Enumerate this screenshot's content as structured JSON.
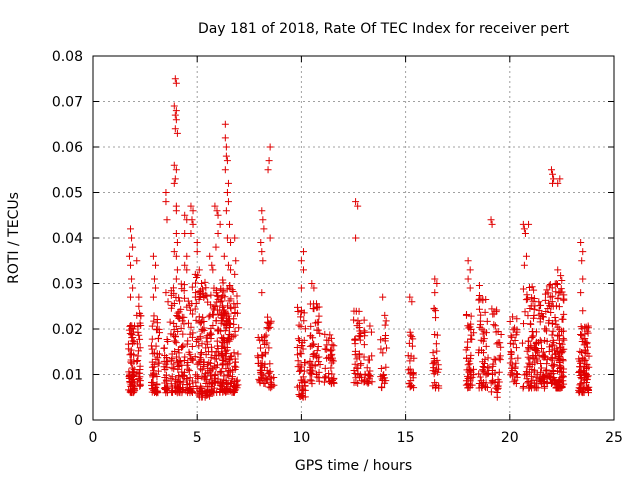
{
  "chart_data": {
    "type": "scatter",
    "title": "Day 181 of 2018, Rate Of TEC Index for receiver pert",
    "xlabel": "GPS time / hours",
    "ylabel": "ROTI / TECUs",
    "xlim": [
      0,
      25
    ],
    "ylim": [
      0,
      0.08
    ],
    "xticks": [
      0,
      5,
      10,
      15,
      20,
      25
    ],
    "xtick_labels": [
      "0",
      "5",
      "10",
      "15",
      "20",
      "25"
    ],
    "yticks": [
      0,
      0.01,
      0.02,
      0.03,
      0.04,
      0.05,
      0.06,
      0.07,
      0.08
    ],
    "ytick_labels": [
      "0",
      "0.01",
      "0.02",
      "0.03",
      "0.04",
      "0.05",
      "0.06",
      "0.07",
      "0.08"
    ],
    "grid": true,
    "marker": "plus",
    "marker_color": "#e00000",
    "clusters": [
      {
        "x": [
          1.7,
          2.0
        ],
        "y_range": [
          0.006,
          0.021
        ],
        "n": 75
      },
      {
        "x": [
          2.1,
          2.3
        ],
        "y_range": [
          0.007,
          0.024
        ],
        "n": 28
      },
      {
        "x": [
          2.8,
          3.2
        ],
        "y_range": [
          0.006,
          0.023
        ],
        "n": 55
      },
      {
        "x": [
          3.4,
          3.6
        ],
        "y_range": [
          0.006,
          0.018
        ],
        "n": 28
      },
      {
        "x": [
          3.7,
          4.3
        ],
        "y_range": [
          0.006,
          0.03
        ],
        "n": 90
      },
      {
        "x": [
          4.3,
          4.8
        ],
        "y_range": [
          0.006,
          0.03
        ],
        "n": 60
      },
      {
        "x": [
          4.9,
          5.6
        ],
        "y_range": [
          0.005,
          0.032
        ],
        "n": 110
      },
      {
        "x": [
          5.6,
          6.1
        ],
        "y_range": [
          0.006,
          0.03
        ],
        "n": 80
      },
      {
        "x": [
          6.1,
          6.6
        ],
        "y_range": [
          0.006,
          0.031
        ],
        "n": 130
      },
      {
        "x": [
          6.6,
          7.0
        ],
        "y_range": [
          0.006,
          0.029
        ],
        "n": 50
      },
      {
        "x": [
          7.9,
          8.3
        ],
        "y_range": [
          0.008,
          0.019
        ],
        "n": 40
      },
      {
        "x": [
          8.3,
          8.7
        ],
        "y_range": [
          0.007,
          0.023
        ],
        "n": 30
      },
      {
        "x": [
          9.8,
          10.2
        ],
        "y_range": [
          0.005,
          0.025
        ],
        "n": 55
      },
      {
        "x": [
          10.4,
          10.9
        ],
        "y_range": [
          0.008,
          0.027
        ],
        "n": 55
      },
      {
        "x": [
          11.1,
          11.6
        ],
        "y_range": [
          0.008,
          0.019
        ],
        "n": 40
      },
      {
        "x": [
          12.5,
          12.9
        ],
        "y_range": [
          0.008,
          0.024
        ],
        "n": 40
      },
      {
        "x": [
          13.0,
          13.4
        ],
        "y_range": [
          0.008,
          0.022
        ],
        "n": 28
      },
      {
        "x": [
          13.8,
          14.1
        ],
        "y_range": [
          0.007,
          0.022
        ],
        "n": 22
      },
      {
        "x": [
          15.1,
          15.4
        ],
        "y_range": [
          0.007,
          0.02
        ],
        "n": 25
      },
      {
        "x": [
          16.3,
          16.6
        ],
        "y_range": [
          0.007,
          0.026
        ],
        "n": 30
      },
      {
        "x": [
          17.9,
          18.3
        ],
        "y_range": [
          0.007,
          0.024
        ],
        "n": 45
      },
      {
        "x": [
          18.5,
          19.0
        ],
        "y_range": [
          0.007,
          0.03
        ],
        "n": 55
      },
      {
        "x": [
          19.1,
          19.6
        ],
        "y_range": [
          0.006,
          0.025
        ],
        "n": 40
      },
      {
        "x": [
          20.0,
          20.4
        ],
        "y_range": [
          0.008,
          0.024
        ],
        "n": 35
      },
      {
        "x": [
          20.6,
          21.2
        ],
        "y_range": [
          0.007,
          0.03
        ],
        "n": 70
      },
      {
        "x": [
          21.2,
          21.7
        ],
        "y_range": [
          0.007,
          0.026
        ],
        "n": 60
      },
      {
        "x": [
          21.7,
          22.2
        ],
        "y_range": [
          0.008,
          0.03
        ],
        "n": 70
      },
      {
        "x": [
          22.2,
          22.6
        ],
        "y_range": [
          0.007,
          0.032
        ],
        "n": 90
      },
      {
        "x": [
          23.3,
          23.8
        ],
        "y_range": [
          0.006,
          0.021
        ],
        "n": 90
      }
    ],
    "points": [
      [
        1.8,
        0.042
      ],
      [
        1.85,
        0.04
      ],
      [
        1.9,
        0.038
      ],
      [
        1.75,
        0.036
      ],
      [
        1.8,
        0.034
      ],
      [
        1.85,
        0.031
      ],
      [
        1.9,
        0.029
      ],
      [
        1.8,
        0.027
      ],
      [
        2.1,
        0.035
      ],
      [
        2.2,
        0.027
      ],
      [
        2.2,
        0.025
      ],
      [
        2.1,
        0.023
      ],
      [
        2.9,
        0.036
      ],
      [
        3.0,
        0.034
      ],
      [
        2.95,
        0.031
      ],
      [
        3.0,
        0.029
      ],
      [
        2.9,
        0.027
      ],
      [
        3.5,
        0.05
      ],
      [
        3.5,
        0.048
      ],
      [
        3.55,
        0.044
      ],
      [
        3.5,
        0.028
      ],
      [
        3.6,
        0.026
      ],
      [
        3.95,
        0.075
      ],
      [
        4.0,
        0.074
      ],
      [
        3.9,
        0.069
      ],
      [
        4.0,
        0.068
      ],
      [
        3.95,
        0.067
      ],
      [
        4.0,
        0.066
      ],
      [
        3.95,
        0.064
      ],
      [
        4.05,
        0.063
      ],
      [
        3.9,
        0.056
      ],
      [
        4.0,
        0.055
      ],
      [
        3.95,
        0.053
      ],
      [
        3.9,
        0.052
      ],
      [
        4.0,
        0.047
      ],
      [
        4.0,
        0.046
      ],
      [
        4.0,
        0.041
      ],
      [
        4.05,
        0.039
      ],
      [
        3.9,
        0.037
      ],
      [
        4.0,
        0.036
      ],
      [
        4.05,
        0.033
      ],
      [
        4.0,
        0.031
      ],
      [
        4.4,
        0.045
      ],
      [
        4.5,
        0.044
      ],
      [
        4.4,
        0.041
      ],
      [
        4.5,
        0.036
      ],
      [
        4.4,
        0.034
      ],
      [
        4.5,
        0.033
      ],
      [
        4.7,
        0.047
      ],
      [
        4.8,
        0.046
      ],
      [
        4.75,
        0.044
      ],
      [
        4.8,
        0.043
      ],
      [
        4.7,
        0.041
      ],
      [
        5.0,
        0.039
      ],
      [
        5.0,
        0.037
      ],
      [
        5.1,
        0.033
      ],
      [
        5.6,
        0.036
      ],
      [
        5.7,
        0.034
      ],
      [
        5.75,
        0.033
      ],
      [
        5.85,
        0.047
      ],
      [
        5.95,
        0.046
      ],
      [
        6.0,
        0.045
      ],
      [
        6.1,
        0.043
      ],
      [
        6.0,
        0.041
      ],
      [
        5.9,
        0.038
      ],
      [
        6.35,
        0.065
      ],
      [
        6.35,
        0.062
      ],
      [
        6.4,
        0.06
      ],
      [
        6.4,
        0.058
      ],
      [
        6.45,
        0.057
      ],
      [
        6.35,
        0.055
      ],
      [
        6.5,
        0.052
      ],
      [
        6.45,
        0.05
      ],
      [
        6.5,
        0.048
      ],
      [
        6.4,
        0.046
      ],
      [
        6.55,
        0.043
      ],
      [
        6.45,
        0.04
      ],
      [
        6.6,
        0.039
      ],
      [
        6.3,
        0.036
      ],
      [
        6.5,
        0.034
      ],
      [
        6.6,
        0.033
      ],
      [
        6.8,
        0.04
      ],
      [
        6.85,
        0.035
      ],
      [
        6.8,
        0.032
      ],
      [
        8.1,
        0.046
      ],
      [
        8.15,
        0.044
      ],
      [
        8.2,
        0.042
      ],
      [
        8.05,
        0.039
      ],
      [
        8.1,
        0.037
      ],
      [
        8.15,
        0.035
      ],
      [
        8.1,
        0.028
      ],
      [
        8.5,
        0.06
      ],
      [
        8.45,
        0.057
      ],
      [
        8.4,
        0.055
      ],
      [
        8.5,
        0.04
      ],
      [
        10.1,
        0.037
      ],
      [
        10.0,
        0.035
      ],
      [
        10.1,
        0.033
      ],
      [
        10.0,
        0.029
      ],
      [
        10.5,
        0.03
      ],
      [
        10.6,
        0.029
      ],
      [
        12.6,
        0.048
      ],
      [
        12.7,
        0.047
      ],
      [
        12.6,
        0.04
      ],
      [
        13.9,
        0.027
      ],
      [
        14.0,
        0.023
      ],
      [
        15.2,
        0.027
      ],
      [
        15.3,
        0.026
      ],
      [
        16.4,
        0.031
      ],
      [
        16.5,
        0.03
      ],
      [
        16.4,
        0.028
      ],
      [
        18.0,
        0.035
      ],
      [
        18.1,
        0.033
      ],
      [
        18.0,
        0.031
      ],
      [
        18.1,
        0.029
      ],
      [
        19.1,
        0.044
      ],
      [
        19.15,
        0.043
      ],
      [
        19.4,
        0.005
      ],
      [
        20.65,
        0.043
      ],
      [
        20.7,
        0.042
      ],
      [
        20.75,
        0.041
      ],
      [
        20.9,
        0.043
      ],
      [
        20.8,
        0.036
      ],
      [
        20.7,
        0.034
      ],
      [
        22.0,
        0.055
      ],
      [
        22.05,
        0.054
      ],
      [
        22.1,
        0.053
      ],
      [
        22.05,
        0.052
      ],
      [
        22.3,
        0.052
      ],
      [
        22.4,
        0.053
      ],
      [
        22.3,
        0.033
      ],
      [
        23.4,
        0.039
      ],
      [
        23.5,
        0.037
      ],
      [
        23.45,
        0.035
      ],
      [
        23.5,
        0.031
      ],
      [
        23.4,
        0.028
      ],
      [
        23.5,
        0.024
      ]
    ]
  }
}
